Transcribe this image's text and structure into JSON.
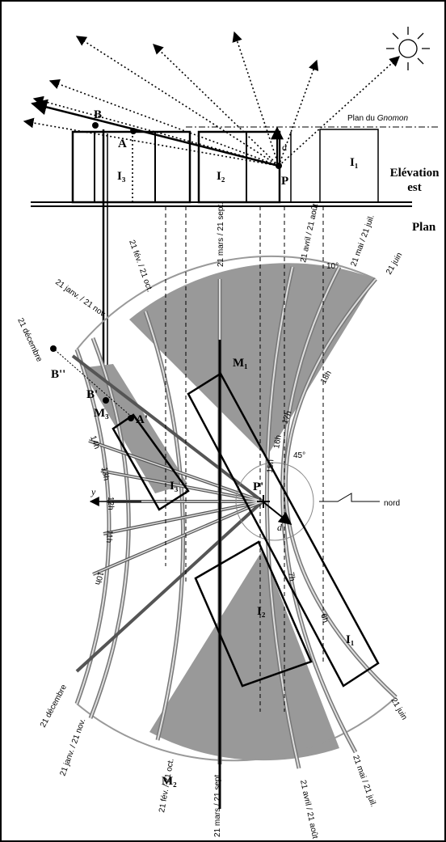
{
  "elevation": {
    "gnomon_plane": "Plan du",
    "gnomon_word": "Gnomon",
    "points": [
      "B",
      "A",
      "P"
    ],
    "d": "d",
    "blocks": [
      "I₃",
      "I₂",
      "I₁"
    ],
    "view_title": [
      "Elévation",
      "est"
    ]
  },
  "plan": {
    "title": "Plan",
    "angles": [
      "10°",
      "45°"
    ],
    "top_dates": [
      "21 décembre",
      "21 janv. / 21 nov.",
      "21 fév. / 21 oct.",
      "21 mars / 21 sept.",
      "21 avril / 21 août",
      "21 mai / 21 juil.",
      "21 juin"
    ],
    "bottom_dates": [
      "21 décembre",
      "21 janv. / 21 nov.",
      "21 fév. / 21 oct.",
      "21 mars / 21 sept.",
      "21 avril / 21 août",
      "21 mai / 21 juil.",
      "21 juin"
    ],
    "points": [
      "B''",
      "B'",
      "A'",
      "P'"
    ],
    "d": "d",
    "regions": [
      "M₁",
      "M₂",
      "M₃"
    ],
    "blocks": [
      "I₃",
      "I₂",
      "I₁"
    ],
    "hours_left": [
      "14h",
      "13h",
      "12h",
      "11h",
      "10h"
    ],
    "hours_right": [
      "17h",
      "16h",
      "15h",
      "18h",
      "7h",
      "6h"
    ],
    "axis_y": "y",
    "north": "nord"
  }
}
